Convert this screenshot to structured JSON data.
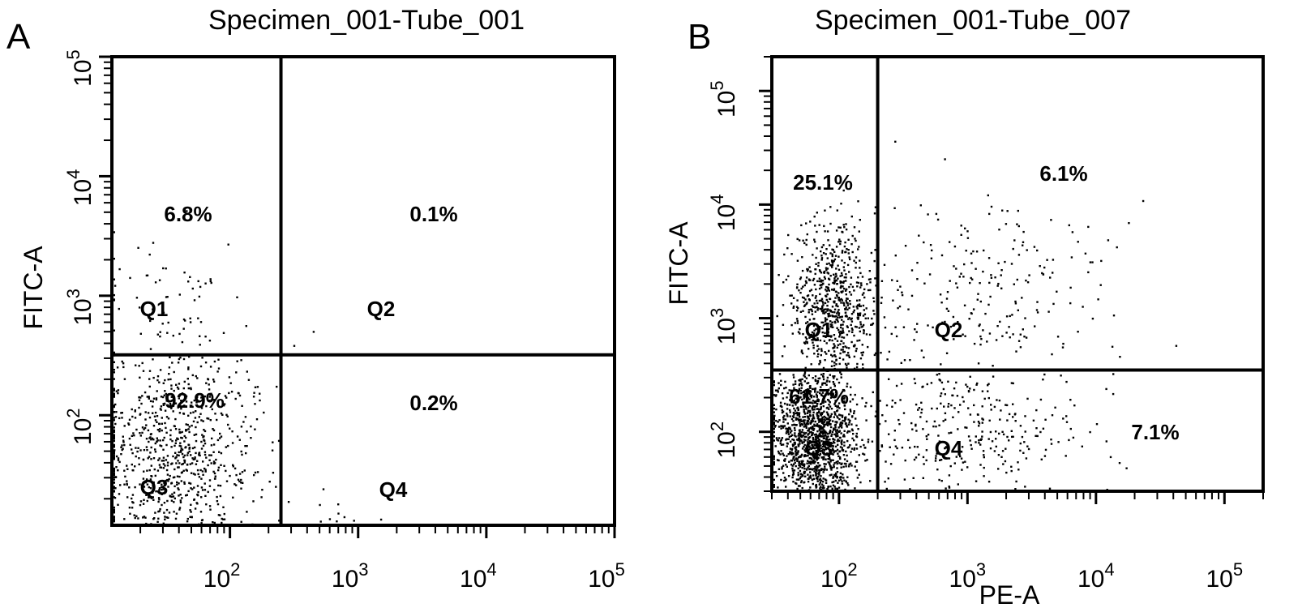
{
  "chart_data": [
    {
      "type": "scatter",
      "panel_label": "A",
      "title": "Specimen_001-Tube_001",
      "xlabel": "",
      "ylabel": "FITC-A",
      "x_scale": "log",
      "y_scale": "log",
      "xlim": [
        12,
        100000
      ],
      "ylim": [
        12,
        100000
      ],
      "x_ticks": [
        "10^2",
        "10^3",
        "10^4",
        "10^5"
      ],
      "y_ticks": [
        "10^2",
        "10^3",
        "10^4",
        "10^5"
      ],
      "gate": {
        "x": 250,
        "y": 320
      },
      "quadrants": [
        {
          "name": "Q1",
          "percent": "6.8%",
          "position": "upper-left"
        },
        {
          "name": "Q2",
          "percent": "0.1%",
          "position": "upper-right"
        },
        {
          "name": "Q3",
          "percent": "92.9%",
          "position": "lower-left"
        },
        {
          "name": "Q4",
          "percent": "0.2%",
          "position": "lower-right"
        }
      ]
    },
    {
      "type": "scatter",
      "panel_label": "B",
      "title": "Specimen_001-Tube_007",
      "xlabel": "PE-A",
      "ylabel": "FITC-A",
      "x_scale": "log",
      "y_scale": "log",
      "xlim": [
        30,
        200000
      ],
      "ylim": [
        30,
        200000
      ],
      "x_ticks": [
        "10^2",
        "10^3",
        "10^4",
        "10^5"
      ],
      "y_ticks": [
        "10^2",
        "10^3",
        "10^4",
        "10^5"
      ],
      "gate": {
        "x": 200,
        "y": 350
      },
      "quadrants": [
        {
          "name": "Q1",
          "percent": "25.1%",
          "position": "upper-left"
        },
        {
          "name": "Q2",
          "percent": "6.1%",
          "position": "upper-right"
        },
        {
          "name": "Q3",
          "percent": "61.7%",
          "position": "lower-left"
        },
        {
          "name": "Q4",
          "percent": "7.1%",
          "position": "lower-right"
        }
      ]
    }
  ]
}
